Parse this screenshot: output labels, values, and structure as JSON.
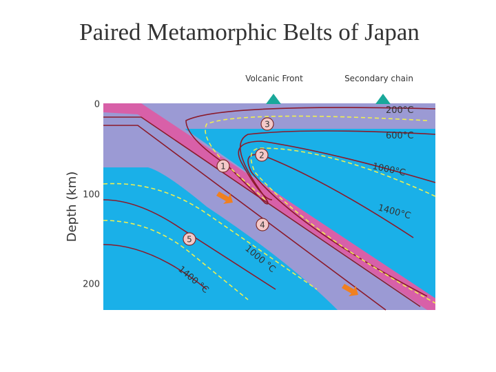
{
  "title": "Paired Metamorphic Belts of Japan",
  "surface_labels": [
    "Volcanic Front",
    "Secondary chain"
  ],
  "axis": {
    "label": "Depth (km)",
    "ticks": [
      "0",
      "100",
      "200"
    ]
  },
  "isotherms": [
    "200°C",
    "600°C",
    "1000°C",
    "1400°C",
    "1000 °C",
    "1400 °C"
  ],
  "zones": [
    "1",
    "2",
    "3",
    "4",
    "5"
  ]
}
